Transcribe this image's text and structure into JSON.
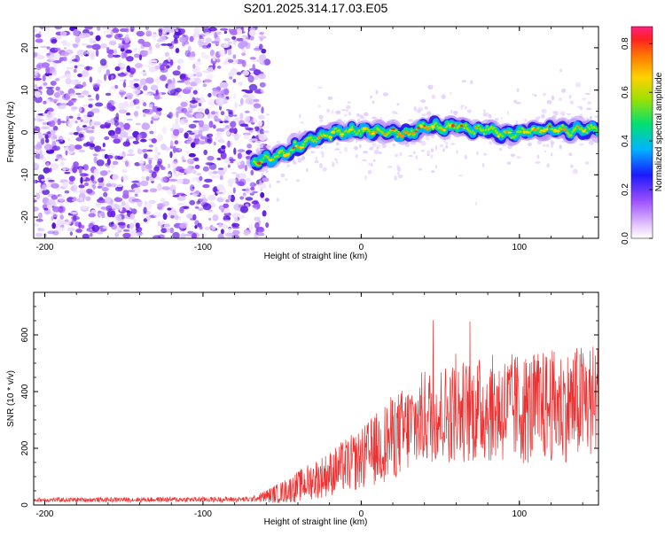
{
  "title": "S201.2025.314.17.03.E05",
  "chart_data": [
    {
      "type": "heatmap",
      "xlabel": "Height of straight line (km)",
      "ylabel": "Frequency (Hz)",
      "xlim": [
        -207,
        150
      ],
      "ylim": [
        -25,
        25
      ],
      "xticks": [
        -200,
        -100,
        0,
        100
      ],
      "yticks": [
        -20,
        -10,
        0,
        10,
        20
      ],
      "noise_region_end_km": -65,
      "ridge": {
        "x": [
          -68,
          -62,
          -55,
          -50,
          -45,
          -40,
          -35,
          -30,
          -25,
          -20,
          -15,
          -10,
          -5,
          0,
          10,
          20,
          30,
          40,
          50,
          60,
          70,
          80,
          90,
          100,
          110,
          120,
          130,
          140,
          150
        ],
        "freq": [
          -7,
          -6.5,
          -6,
          -5,
          -4.5,
          -3.5,
          -2.5,
          -1.5,
          -0.8,
          -0.3,
          0,
          0.2,
          0.2,
          0.3,
          0.2,
          0,
          -0.5,
          1.5,
          1.2,
          1.5,
          0.5,
          0.8,
          -0.5,
          0,
          0.5,
          0.8,
          0.2,
          0.8,
          0.5
        ]
      },
      "colorbar": {
        "label": "Normalized spectral amplitude",
        "ticks": [
          "0.0",
          "0.2",
          "0.4",
          "0.6",
          "0.8"
        ],
        "range": [
          0,
          0.87
        ]
      }
    },
    {
      "type": "line",
      "xlabel": "Height of straight line (km)",
      "ylabel": "SNR (10 * v/v)",
      "xlim": [
        -207,
        150
      ],
      "ylim": [
        0,
        750
      ],
      "xticks": [
        -200,
        -100,
        0,
        100
      ],
      "yticks": [
        0,
        200,
        400,
        600
      ],
      "series": [
        {
          "name": "SNR",
          "color": "#ee3030",
          "trend_x": [
            -207,
            -70,
            -65,
            -50,
            -40,
            -30,
            -20,
            -10,
            0,
            10,
            20,
            30,
            40,
            50,
            60,
            70,
            80,
            90,
            100,
            110,
            120,
            130,
            140,
            150
          ],
          "trend_mean": [
            18,
            20,
            25,
            45,
            65,
            90,
            110,
            140,
            160,
            200,
            240,
            270,
            310,
            320,
            330,
            330,
            340,
            340,
            340,
            340,
            350,
            350,
            360,
            370
          ],
          "trend_spread": [
            10,
            12,
            15,
            40,
            55,
            70,
            80,
            95,
            110,
            130,
            150,
            160,
            170,
            175,
            180,
            185,
            190,
            195,
            200,
            200,
            200,
            200,
            210,
            210
          ]
        }
      ]
    }
  ]
}
